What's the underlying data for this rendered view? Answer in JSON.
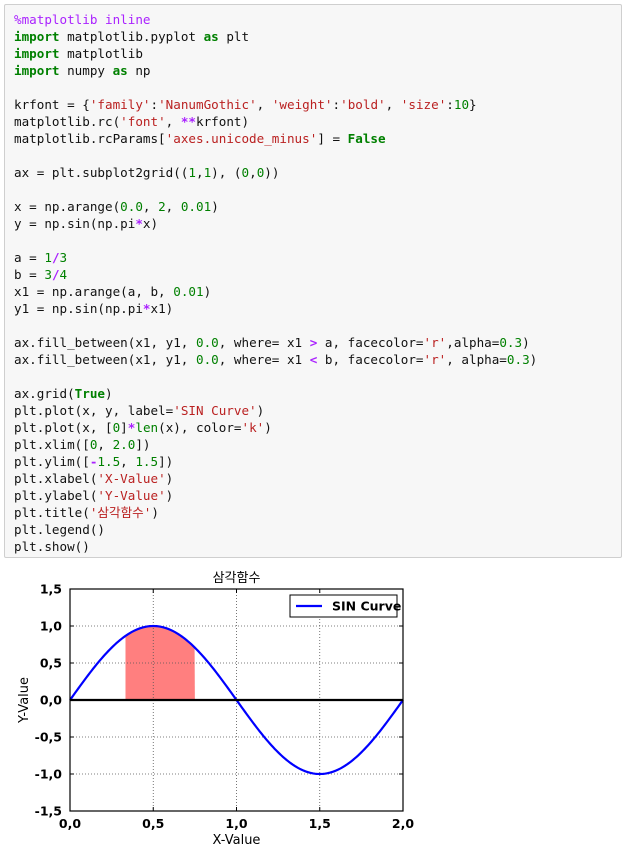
{
  "code_cell": {
    "lines": [
      [
        {
          "t": "%matplotlib inline",
          "c": "mg"
        }
      ],
      [
        {
          "t": "import",
          "c": "kw"
        },
        {
          "t": " matplotlib.pyplot "
        },
        {
          "t": "as",
          "c": "kw"
        },
        {
          "t": " plt"
        }
      ],
      [
        {
          "t": "import",
          "c": "kw"
        },
        {
          "t": " matplotlib"
        }
      ],
      [
        {
          "t": "import",
          "c": "kw"
        },
        {
          "t": " numpy "
        },
        {
          "t": "as",
          "c": "kw"
        },
        {
          "t": " np"
        }
      ],
      [],
      [
        {
          "t": "krfont = {"
        },
        {
          "t": "'family'",
          "c": "str"
        },
        {
          "t": ":"
        },
        {
          "t": "'NanumGothic'",
          "c": "str"
        },
        {
          "t": ", "
        },
        {
          "t": "'weight'",
          "c": "str"
        },
        {
          "t": ":"
        },
        {
          "t": "'bold'",
          "c": "str"
        },
        {
          "t": ", "
        },
        {
          "t": "'size'",
          "c": "str"
        },
        {
          "t": ":"
        },
        {
          "t": "10",
          "c": "num"
        },
        {
          "t": "}"
        }
      ],
      [
        {
          "t": "matplotlib.rc("
        },
        {
          "t": "'font'",
          "c": "str"
        },
        {
          "t": ", "
        },
        {
          "t": "**",
          "c": "op"
        },
        {
          "t": "krfont)"
        }
      ],
      [
        {
          "t": "matplotlib.rcParams["
        },
        {
          "t": "'axes.unicode_minus'",
          "c": "str"
        },
        {
          "t": "] = "
        },
        {
          "t": "False",
          "c": "kw"
        }
      ],
      [],
      [
        {
          "t": "ax = plt.subplot2grid(("
        },
        {
          "t": "1",
          "c": "num"
        },
        {
          "t": ","
        },
        {
          "t": "1",
          "c": "num"
        },
        {
          "t": "), ("
        },
        {
          "t": "0",
          "c": "num"
        },
        {
          "t": ","
        },
        {
          "t": "0",
          "c": "num"
        },
        {
          "t": "))"
        }
      ],
      [],
      [
        {
          "t": "x = np.arange("
        },
        {
          "t": "0.0",
          "c": "num"
        },
        {
          "t": ", "
        },
        {
          "t": "2",
          "c": "num"
        },
        {
          "t": ", "
        },
        {
          "t": "0.01",
          "c": "num"
        },
        {
          "t": ")"
        }
      ],
      [
        {
          "t": "y = np.sin(np.pi"
        },
        {
          "t": "*",
          "c": "op"
        },
        {
          "t": "x)"
        }
      ],
      [],
      [
        {
          "t": "a = "
        },
        {
          "t": "1",
          "c": "num"
        },
        {
          "t": "/",
          "c": "op"
        },
        {
          "t": "3",
          "c": "num"
        }
      ],
      [
        {
          "t": "b = "
        },
        {
          "t": "3",
          "c": "num"
        },
        {
          "t": "/",
          "c": "op"
        },
        {
          "t": "4",
          "c": "num"
        }
      ],
      [
        {
          "t": "x1 = np.arange(a, b, "
        },
        {
          "t": "0.01",
          "c": "num"
        },
        {
          "t": ")"
        }
      ],
      [
        {
          "t": "y1 = np.sin(np.pi"
        },
        {
          "t": "*",
          "c": "op"
        },
        {
          "t": "x1)"
        }
      ],
      [],
      [
        {
          "t": "ax.fill_between(x1, y1, "
        },
        {
          "t": "0.0",
          "c": "num"
        },
        {
          "t": ", where= x1 "
        },
        {
          "t": ">",
          "c": "op"
        },
        {
          "t": " a, facecolor="
        },
        {
          "t": "'r'",
          "c": "str"
        },
        {
          "t": ",alpha="
        },
        {
          "t": "0.3",
          "c": "num"
        },
        {
          "t": ")"
        }
      ],
      [
        {
          "t": "ax.fill_between(x1, y1, "
        },
        {
          "t": "0.0",
          "c": "num"
        },
        {
          "t": ", where= x1 "
        },
        {
          "t": "<",
          "c": "op"
        },
        {
          "t": " b, facecolor="
        },
        {
          "t": "'r'",
          "c": "str"
        },
        {
          "t": ", alpha="
        },
        {
          "t": "0.3",
          "c": "num"
        },
        {
          "t": ")"
        }
      ],
      [],
      [
        {
          "t": "ax.grid("
        },
        {
          "t": "True",
          "c": "kw"
        },
        {
          "t": ")"
        }
      ],
      [
        {
          "t": "plt.plot(x, y, label="
        },
        {
          "t": "'SIN Curve'",
          "c": "str"
        },
        {
          "t": ")"
        }
      ],
      [
        {
          "t": "plt.plot(x, ["
        },
        {
          "t": "0",
          "c": "num"
        },
        {
          "t": "]"
        },
        {
          "t": "*",
          "c": "op"
        },
        {
          "t": "len",
          "c": "bi"
        },
        {
          "t": "(x), color="
        },
        {
          "t": "'k'",
          "c": "str"
        },
        {
          "t": ")"
        }
      ],
      [
        {
          "t": "plt.xlim(["
        },
        {
          "t": "0",
          "c": "num"
        },
        {
          "t": ", "
        },
        {
          "t": "2.0",
          "c": "num"
        },
        {
          "t": "])"
        }
      ],
      [
        {
          "t": "plt.ylim(["
        },
        {
          "t": "-",
          "c": "op"
        },
        {
          "t": "1.5",
          "c": "num"
        },
        {
          "t": ", "
        },
        {
          "t": "1.5",
          "c": "num"
        },
        {
          "t": "])"
        }
      ],
      [
        {
          "t": "plt.xlabel("
        },
        {
          "t": "'X-Value'",
          "c": "str"
        },
        {
          "t": ")"
        }
      ],
      [
        {
          "t": "plt.ylabel("
        },
        {
          "t": "'Y-Value'",
          "c": "str"
        },
        {
          "t": ")"
        }
      ],
      [
        {
          "t": "plt.title("
        },
        {
          "t": "'삼각함수'",
          "c": "str"
        },
        {
          "t": ")"
        }
      ],
      [
        {
          "t": "plt.legend()"
        }
      ],
      [
        {
          "t": "plt.show()"
        }
      ]
    ]
  },
  "chart_data": {
    "type": "line",
    "title": "삼각함수",
    "xlabel": "X-Value",
    "ylabel": "Y-Value",
    "xlim": [
      0,
      2.0
    ],
    "ylim": [
      -1.5,
      1.5
    ],
    "xticks": [
      0,
      0.5,
      1.0,
      1.5,
      2.0
    ],
    "xtick_labels": [
      "0,0",
      "0,5",
      "1,0",
      "1,5",
      "2,0"
    ],
    "yticks": [
      1.5,
      1.0,
      0.5,
      0.0,
      -0.5,
      -1.0,
      -1.5
    ],
    "ytick_labels": [
      "1,5",
      "1,0",
      "0,5",
      "0,0",
      "-0,5",
      "-1,0",
      "-1,5"
    ],
    "grid": true,
    "legend_placement": "top-right",
    "series": [
      {
        "name": "SIN Curve",
        "function": "sin(pi*x)",
        "x_range": [
          0,
          2.0
        ],
        "step": 0.01,
        "color": "#0000ff"
      },
      {
        "function": "0",
        "x_range": [
          0,
          2.0
        ],
        "color": "#000000"
      }
    ],
    "fill": {
      "x_range": [
        0.3333,
        0.75
      ],
      "under": "sin(pi*x)",
      "to": 0.0,
      "color": "#ff0000",
      "alpha": 0.5
    }
  }
}
